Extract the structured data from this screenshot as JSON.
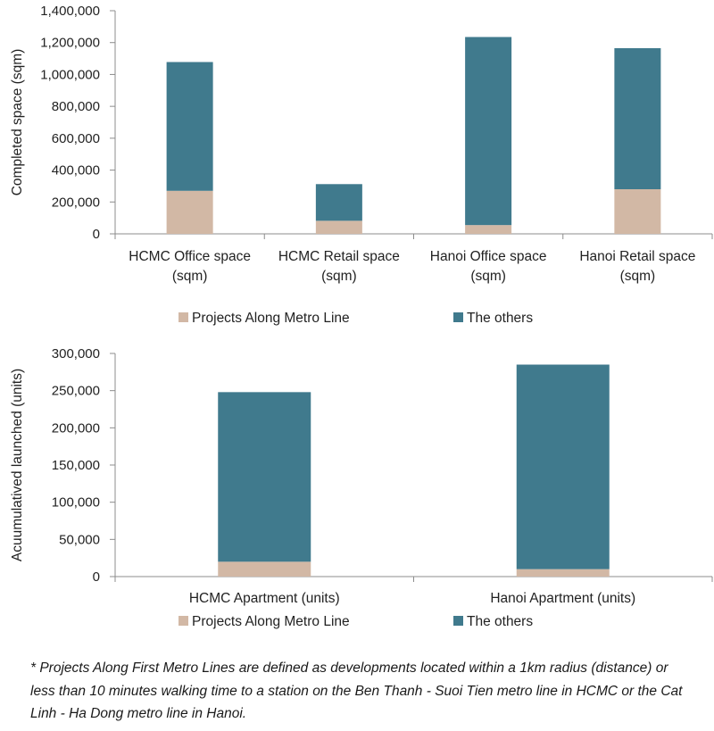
{
  "chart_data": [
    {
      "type": "bar",
      "stacked": true,
      "categories": [
        "HCMC Office space (sqm)",
        "HCMC Retail space (sqm)",
        "Hanoi Office space (sqm)",
        "Hanoi Retail space (sqm)"
      ],
      "category_lines": [
        [
          "HCMC Office space",
          "(sqm)"
        ],
        [
          "HCMC Retail space",
          "(sqm)"
        ],
        [
          "Hanoi Office space",
          "(sqm)"
        ],
        [
          "Hanoi Retail space",
          "(sqm)"
        ]
      ],
      "series": [
        {
          "name": "Projects Along Metro Line",
          "color": "#d2b8a5",
          "values": [
            270000,
            82000,
            55000,
            280000
          ]
        },
        {
          "name": "The others",
          "color": "#407a8d",
          "values": [
            808000,
            230000,
            1180000,
            885000
          ]
        }
      ],
      "ylabel": "Completed space (sqm)",
      "ylim": [
        0,
        1400000
      ],
      "yticks": [
        "0",
        "200,000",
        "400,000",
        "600,000",
        "800,000",
        "1,000,000",
        "1,200,000",
        "1,400,000"
      ],
      "grid": false,
      "legend": "bottom"
    },
    {
      "type": "bar",
      "stacked": true,
      "categories": [
        "HCMC Apartment (units)",
        "Hanoi Apartment (units)"
      ],
      "category_lines": [
        [
          "HCMC Apartment (units)"
        ],
        [
          "Hanoi Apartment (units)"
        ]
      ],
      "series": [
        {
          "name": "Projects Along Metro Line",
          "color": "#d2b8a5",
          "values": [
            20000,
            10000
          ]
        },
        {
          "name": "The others",
          "color": "#407a8d",
          "values": [
            228000,
            275000
          ]
        }
      ],
      "ylabel": "Acuumulatived launched (units)",
      "ylim": [
        0,
        300000
      ],
      "yticks": [
        "0",
        "50,000",
        "100,000",
        "150,000",
        "200,000",
        "250,000",
        "300,000"
      ],
      "grid": false,
      "legend": "bottom"
    }
  ],
  "footnote": "* Projects Along First Metro Lines are defined as developments located within a 1km radius (distance) or less than 10 minutes walking time to a station on the Ben Thanh - Suoi Tien metro line in HCMC or the Cat Linh - Ha Dong metro line in Hanoi."
}
